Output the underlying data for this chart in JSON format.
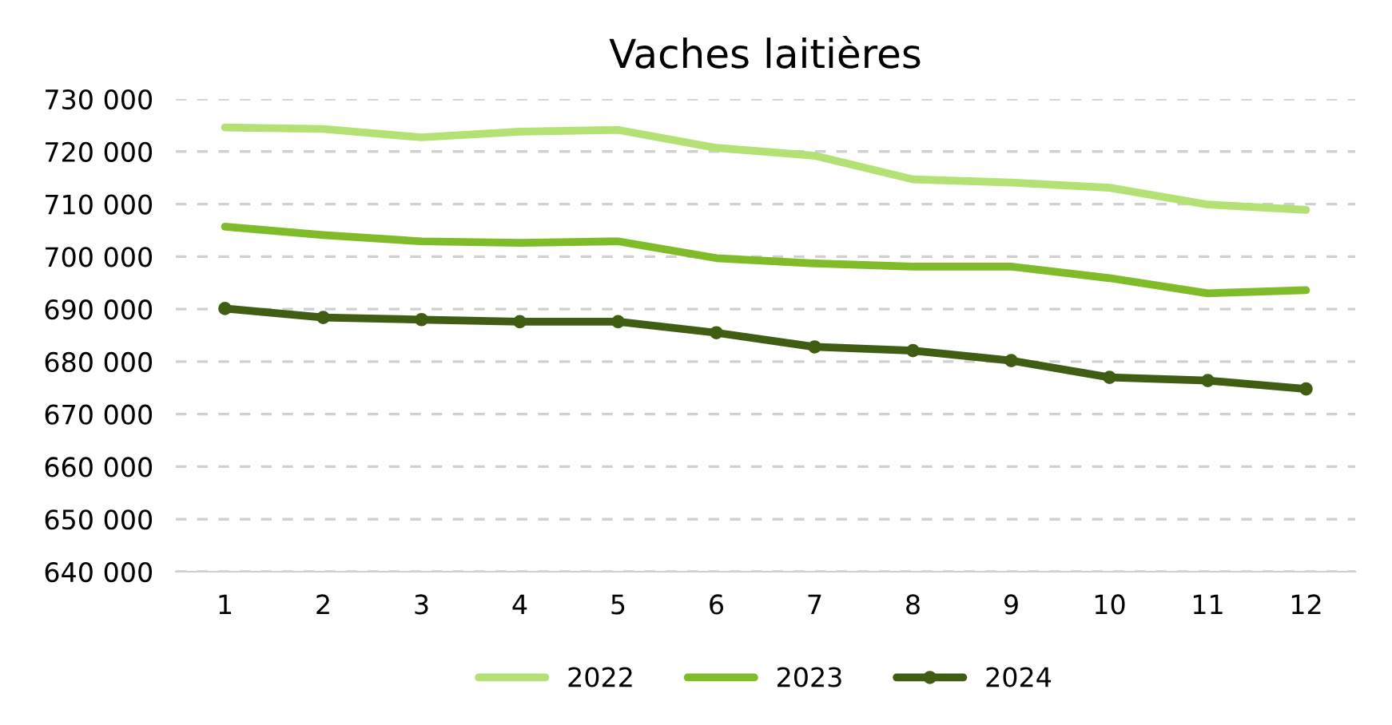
{
  "chart_data": {
    "type": "line",
    "title": "Vaches laitières",
    "categories": [
      "1",
      "2",
      "3",
      "4",
      "5",
      "6",
      "7",
      "8",
      "9",
      "10",
      "11",
      "12"
    ],
    "series": [
      {
        "name": "2022",
        "color": "#b3e173",
        "marker": "none",
        "values": [
          724600,
          724300,
          722700,
          723800,
          724100,
          720700,
          719200,
          714700,
          714100,
          713100,
          709900,
          708900
        ]
      },
      {
        "name": "2023",
        "color": "#80bc2a",
        "marker": "none",
        "values": [
          705700,
          704100,
          702900,
          702600,
          702900,
          699700,
          698700,
          698100,
          698100,
          695900,
          693000,
          693600
        ]
      },
      {
        "name": "2024",
        "color": "#3f5e13",
        "marker": "circle",
        "values": [
          690100,
          688400,
          688000,
          687600,
          687600,
          685500,
          682800,
          682100,
          680200,
          677000,
          676400,
          674800
        ]
      }
    ],
    "ylim": [
      640000,
      730000
    ],
    "yticks": [
      {
        "value": 640000,
        "label": "640 000"
      },
      {
        "value": 650000,
        "label": "650 000"
      },
      {
        "value": 660000,
        "label": "660 000"
      },
      {
        "value": 670000,
        "label": "670 000"
      },
      {
        "value": 680000,
        "label": "680 000"
      },
      {
        "value": 690000,
        "label": "690 000"
      },
      {
        "value": 700000,
        "label": "700 000"
      },
      {
        "value": 710000,
        "label": "710 000"
      },
      {
        "value": 720000,
        "label": "720 000"
      },
      {
        "value": 730000,
        "label": "730 000"
      }
    ],
    "grid": "y",
    "legend": "bottom",
    "line_style": "solid"
  }
}
